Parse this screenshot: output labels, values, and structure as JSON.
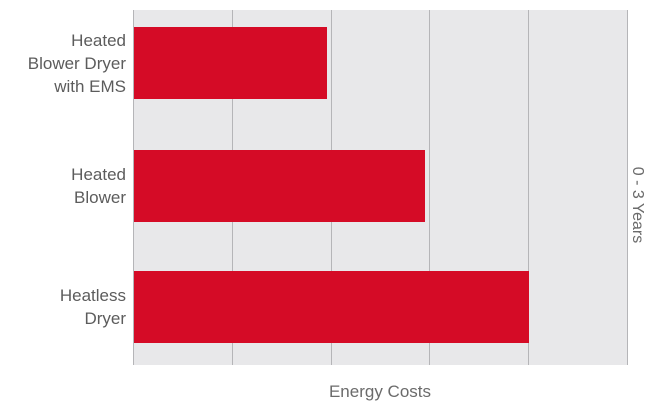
{
  "chart_data": {
    "type": "bar",
    "orientation": "horizontal",
    "categories": [
      "Heated\nBlower Dryer\nwith EMS",
      "Heated\nBlower",
      "Heatless\nDryer"
    ],
    "values": [
      39,
      59,
      80
    ],
    "xlabel": "Energy Costs",
    "side_label": "0 - 3 Years",
    "xlim": [
      0,
      100
    ],
    "grid": true,
    "colors": {
      "bar": "#d50b26",
      "plot_background": "#e8e8ea",
      "gridline": "#b5b5b8"
    }
  }
}
